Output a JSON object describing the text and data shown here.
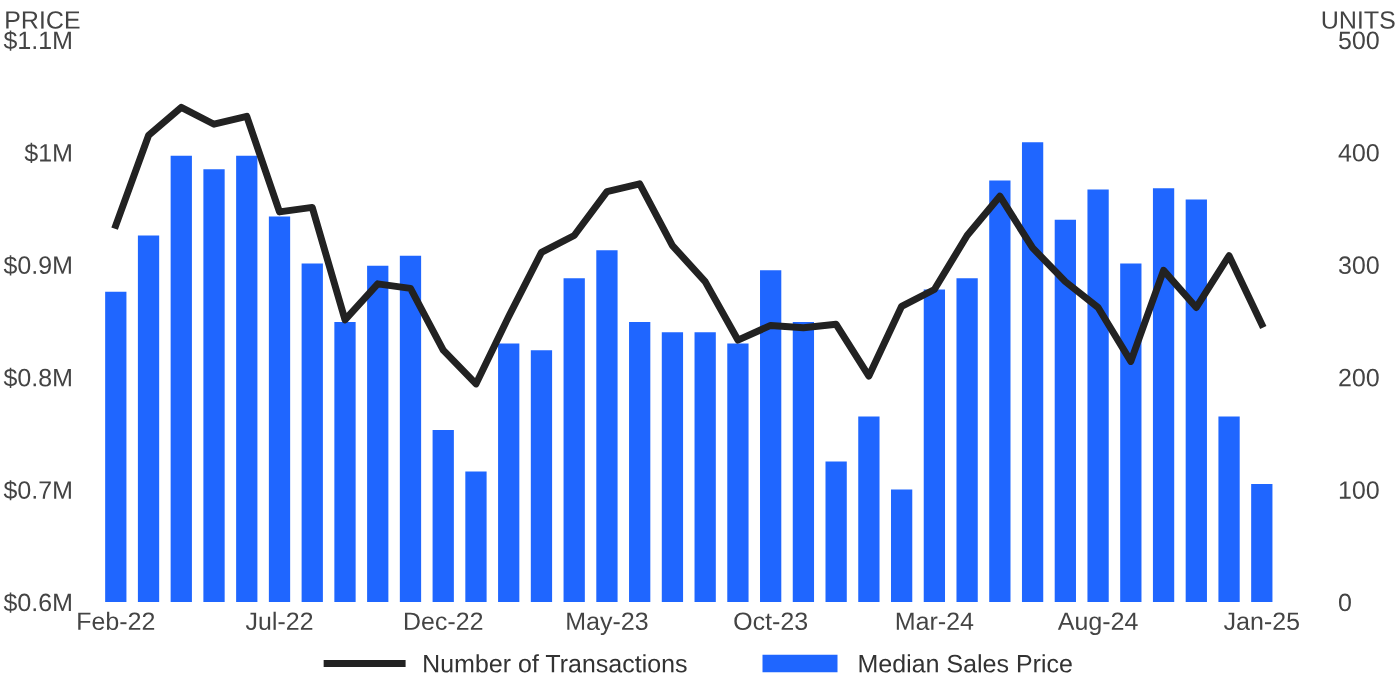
{
  "chart_data": {
    "type": "bar",
    "ylabel": "PRICE",
    "y2label": "UNITS",
    "categories": [
      "Feb-22",
      null,
      null,
      null,
      null,
      "Jul-22",
      null,
      null,
      null,
      null,
      "Dec-22",
      null,
      null,
      null,
      null,
      "May-23",
      null,
      null,
      null,
      null,
      "Oct-23",
      null,
      null,
      null,
      null,
      "Mar-24",
      null,
      null,
      null,
      null,
      "Aug-24",
      null,
      null,
      null,
      null,
      "Jan-25"
    ],
    "series": [
      {
        "name": "Number of Transactions",
        "type": "line",
        "axis": "y2",
        "color": "#222222",
        "values": [
          335,
          415,
          440,
          425,
          432,
          347,
          351,
          251,
          283,
          279,
          224,
          194,
          254,
          311,
          326,
          365,
          372,
          317,
          285,
          233,
          246,
          244,
          247,
          201,
          263,
          278,
          326,
          361,
          315,
          285,
          262,
          214,
          295,
          262,
          308,
          247
        ]
      },
      {
        "name": "Median Sales Price",
        "axis": "y",
        "color": "#1f66ff",
        "values": [
          0.876,
          0.926,
          0.997,
          0.985,
          0.997,
          0.943,
          0.901,
          0.849,
          0.899,
          0.908,
          0.753,
          0.716,
          0.83,
          0.824,
          0.888,
          0.913,
          0.849,
          0.84,
          0.84,
          0.83,
          0.895,
          0.849,
          0.725,
          0.765,
          0.7,
          0.878,
          0.888,
          0.975,
          1.009,
          0.94,
          0.967,
          0.901,
          0.968,
          0.958,
          0.765,
          0.705
        ]
      }
    ],
    "ylim": [
      0.6,
      1.1
    ],
    "yticks": [
      {
        "value": 0.6,
        "label": "$0.6M"
      },
      {
        "value": 0.7,
        "label": "$0.7M"
      },
      {
        "value": 0.8,
        "label": "$0.8M"
      },
      {
        "value": 0.9,
        "label": "$0.9M"
      },
      {
        "value": 1.0,
        "label": "$1M"
      },
      {
        "value": 1.1,
        "label": "$1.1M"
      }
    ],
    "y2lim": [
      0,
      500
    ],
    "y2ticks": [
      0,
      100,
      200,
      300,
      400,
      500
    ],
    "grid": false,
    "legend": "bottom",
    "line_style": "solid",
    "marker": "none"
  }
}
